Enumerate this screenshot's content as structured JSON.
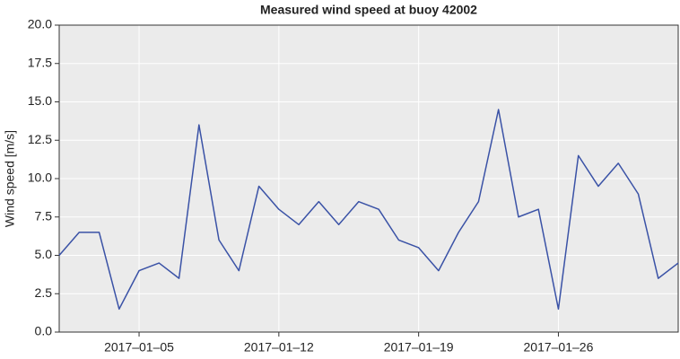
{
  "chart_data": {
    "type": "line",
    "title": "Measured wind speed at buoy 42002",
    "y_label": "Wind speed [m/s]",
    "x": [
      "2017-01-01",
      "2017-01-02",
      "2017-01-03",
      "2017-01-04",
      "2017-01-05",
      "2017-01-06",
      "2017-01-07",
      "2017-01-08",
      "2017-01-09",
      "2017-01-10",
      "2017-01-11",
      "2017-01-12",
      "2017-01-13",
      "2017-01-14",
      "2017-01-15",
      "2017-01-16",
      "2017-01-17",
      "2017-01-18",
      "2017-01-19",
      "2017-01-20",
      "2017-01-21",
      "2017-01-22",
      "2017-01-23",
      "2017-01-24",
      "2017-01-25",
      "2017-01-26",
      "2017-01-27",
      "2017-01-28",
      "2017-01-29",
      "2017-01-30",
      "2017-01-31",
      "2017-02-01"
    ],
    "series": [
      {
        "name": "Wind speed",
        "color": "#3a52a6",
        "values": [
          5.0,
          6.5,
          6.5,
          1.5,
          4.0,
          4.5,
          3.5,
          13.5,
          6.0,
          4.0,
          9.5,
          8.0,
          7.0,
          8.5,
          7.0,
          8.5,
          8.0,
          6.0,
          5.5,
          4.0,
          6.5,
          8.5,
          14.5,
          7.5,
          8.0,
          1.5,
          11.5,
          9.5,
          11.0,
          9.0,
          3.5,
          4.5
        ]
      }
    ],
    "xlim": [
      "2017-01-01",
      "2017-02-01"
    ],
    "xticks": [
      {
        "value": "2017-01-05",
        "label": "2017–01–05"
      },
      {
        "value": "2017-01-12",
        "label": "2017–01–12"
      },
      {
        "value": "2017-01-19",
        "label": "2017–01–19"
      },
      {
        "value": "2017-01-26",
        "label": "2017–01–26"
      }
    ],
    "ylim": [
      0,
      20
    ],
    "yticks": [
      {
        "value": 0,
        "label": "0.0"
      },
      {
        "value": 2.5,
        "label": "2.5"
      },
      {
        "value": 5,
        "label": "5.0"
      },
      {
        "value": 7.5,
        "label": "7.5"
      },
      {
        "value": 10,
        "label": "10.0"
      },
      {
        "value": 12.5,
        "label": "12.5"
      },
      {
        "value": 15,
        "label": "15.0"
      },
      {
        "value": 17.5,
        "label": "17.5"
      },
      {
        "value": 20,
        "label": "20.0"
      }
    ],
    "grid": true
  }
}
